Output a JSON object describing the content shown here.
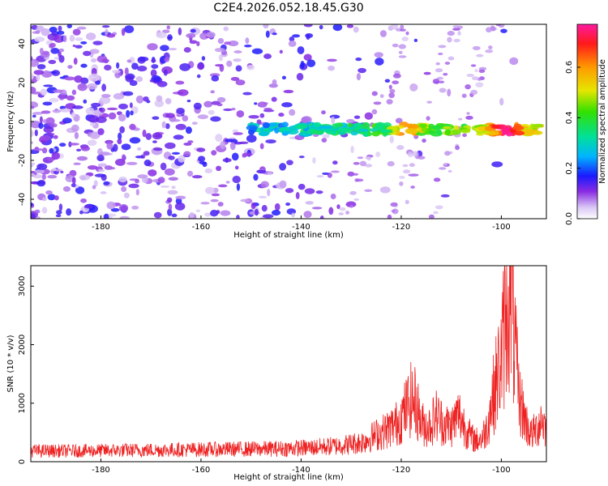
{
  "chart_data": [
    {
      "type": "heatmap",
      "title": "C2E4.2026.052.18.45.G30",
      "xlabel": "Height of straight line (km)",
      "ylabel": "Frequency (Hz)",
      "xlim": [
        -194,
        -91
      ],
      "ylim": [
        -50,
        50
      ],
      "xticks": [
        -180,
        -160,
        -140,
        -120,
        -100
      ],
      "yticks": [
        -40,
        -20,
        0,
        20,
        40
      ],
      "colorbar": {
        "label": "Normalized spectral amplitude",
        "range": [
          0.0,
          0.77
        ],
        "ticks": [
          0.0,
          0.2,
          0.4,
          0.6
        ]
      },
      "features": [
        {
          "name": "scattered noise patches",
          "x_range": [
            -194,
            -125
          ],
          "y_range": [
            -50,
            50
          ],
          "level": 0.12
        },
        {
          "name": "signal band",
          "x_range": [
            -150,
            -92
          ],
          "frequency": -4,
          "peak_level": 0.77,
          "peak_x": -99
        }
      ]
    },
    {
      "type": "line",
      "xlabel": "Height of straight line (km)",
      "ylabel": "SNR (10 * v/v)",
      "xlim": [
        -194,
        -91
      ],
      "ylim": [
        0,
        3350
      ],
      "xticks": [
        -180,
        -160,
        -140,
        -120,
        -100
      ],
      "yticks": [
        0,
        1000,
        2000,
        3000
      ],
      "series": [
        {
          "name": "SNR",
          "color": "#ee2222",
          "x": [
            -194,
            -185,
            -175,
            -165,
            -155,
            -145,
            -138,
            -132,
            -128,
            -126,
            -124.5,
            -123,
            -121,
            -119.5,
            -118,
            -117,
            -116,
            -114.5,
            -113,
            -111.5,
            -110,
            -108.5,
            -107,
            -106,
            -105,
            -104,
            -103,
            -102,
            -101,
            -100,
            -99,
            -98.2,
            -97.5,
            -96.5,
            -95,
            -94,
            -93,
            -92,
            -91
          ],
          "values": [
            200,
            200,
            210,
            220,
            230,
            240,
            260,
            300,
            360,
            450,
            520,
            580,
            700,
            900,
            1150,
            1080,
            700,
            650,
            850,
            700,
            650,
            880,
            600,
            450,
            400,
            420,
            600,
            1050,
            1500,
            1900,
            2800,
            3300,
            2300,
            1200,
            700,
            500,
            600,
            800,
            600
          ]
        }
      ]
    }
  ]
}
